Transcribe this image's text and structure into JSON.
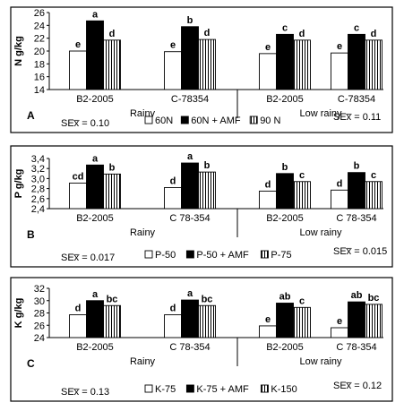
{
  "colors": {
    "open": "#ffffff",
    "solid": "#000000",
    "hatch_line": "#000000",
    "frame": "#000000"
  },
  "chart_data": [
    {
      "type": "bar",
      "panel_label": "A",
      "ylabel": "N g/kg",
      "ylim": [
        14,
        26
      ],
      "yticks": [
        "14",
        "16",
        "18",
        "20",
        "22",
        "24",
        "26"
      ],
      "categories": [
        "B2-2005",
        "C-78354",
        "B2-2005",
        "C-78354"
      ],
      "groups": [
        "Rainy",
        "Low rainy"
      ],
      "series": [
        {
          "name": "60N",
          "style": "open",
          "values": [
            20.0,
            19.9,
            19.6,
            19.7
          ],
          "letters": [
            "e",
            "e",
            "e",
            "e"
          ]
        },
        {
          "name": "60N + AMF",
          "style": "solid",
          "values": [
            24.7,
            23.8,
            22.6,
            22.6
          ],
          "letters": [
            "a",
            "b",
            "c",
            "c"
          ]
        },
        {
          "name": "90 N",
          "style": "hatch",
          "values": [
            21.7,
            21.8,
            21.7,
            21.7
          ],
          "letters": [
            "d",
            "d",
            "d",
            "d"
          ]
        }
      ],
      "sex": [
        "SEx̅ = 0.10",
        "SEx̅ = 0.11"
      ]
    },
    {
      "type": "bar",
      "panel_label": "B",
      "ylabel": "P g/kg",
      "ylim": [
        2.4,
        3.4
      ],
      "yticks": [
        "2,4",
        "2,6",
        "2,8",
        "3,0",
        "3,2",
        "3,4"
      ],
      "categories": [
        "B2-2005",
        "C 78-354",
        "B2-2005",
        "C 78-354"
      ],
      "groups": [
        "Rainy",
        "Low rainy"
      ],
      "series": [
        {
          "name": "P-50",
          "style": "open",
          "values": [
            2.91,
            2.82,
            2.75,
            2.77
          ],
          "letters": [
            "cd",
            "d",
            "d",
            "d"
          ]
        },
        {
          "name": "P-50 + AMF",
          "style": "solid",
          "values": [
            3.27,
            3.31,
            3.1,
            3.12
          ],
          "letters": [
            "a",
            "a",
            "b",
            "b"
          ]
        },
        {
          "name": "P-75",
          "style": "hatch",
          "values": [
            3.09,
            3.13,
            2.94,
            2.94
          ],
          "letters": [
            "b",
            "b",
            "c",
            "c"
          ]
        }
      ],
      "sex": [
        "SEx̅ = 0.017",
        "SEx̅ = 0.015"
      ]
    },
    {
      "type": "bar",
      "panel_label": "C",
      "ylabel": "K g/kg",
      "ylim": [
        24,
        32
      ],
      "yticks": [
        "24",
        "26",
        "28",
        "30",
        "32"
      ],
      "categories": [
        "B2-2005",
        "C 78-354",
        "B2-2005",
        "C 78-354"
      ],
      "groups": [
        "Rainy",
        "Low rainy"
      ],
      "series": [
        {
          "name": "K-75",
          "style": "open",
          "values": [
            27.7,
            27.7,
            25.9,
            25.6
          ],
          "letters": [
            "d",
            "d",
            "e",
            "e"
          ]
        },
        {
          "name": "K-75 + AMF",
          "style": "solid",
          "values": [
            30.0,
            30.1,
            29.6,
            29.8
          ],
          "letters": [
            "a",
            "a",
            "ab",
            "ab"
          ]
        },
        {
          "name": "K-150",
          "style": "hatch",
          "values": [
            29.2,
            29.2,
            28.9,
            29.4
          ],
          "letters": [
            "bc",
            "bc",
            "c",
            "bc"
          ]
        }
      ],
      "sex": [
        "SEx̅ = 0.13",
        "SEx̅ = 0.12"
      ]
    }
  ]
}
